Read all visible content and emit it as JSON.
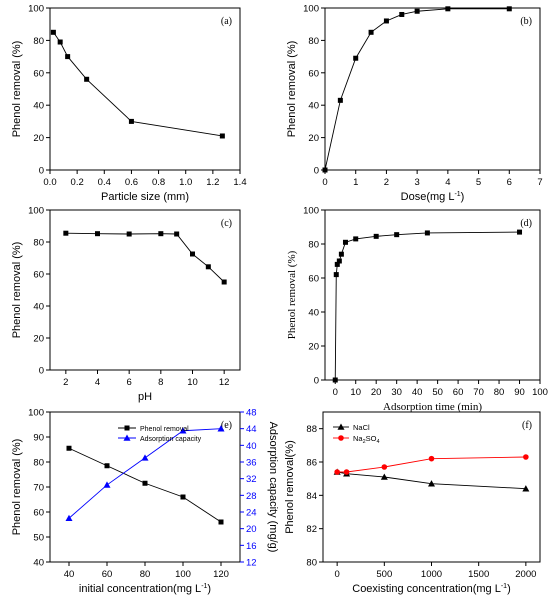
{
  "chart_data": [
    {
      "type": "line",
      "panel": "(a)",
      "xlabel": "Particle size (mm)",
      "ylabel": "Phenol removal (%)",
      "xlim": [
        0,
        1.4
      ],
      "ylim": [
        0,
        100
      ],
      "xticks": [
        "0.0",
        "0.2",
        "0.4",
        "0.6",
        "0.8",
        "1.0",
        "1.2",
        "1.4"
      ],
      "yticks": [
        "0",
        "20",
        "40",
        "60",
        "80",
        "100"
      ],
      "grid": false,
      "series": [
        {
          "color": "#000000",
          "marker": "square",
          "x": [
            0.025,
            0.075,
            0.13,
            0.27,
            0.6,
            1.27
          ],
          "y": [
            85,
            79,
            70,
            56,
            30,
            21
          ]
        }
      ]
    },
    {
      "type": "line",
      "panel": "(b)",
      "xlabel": "Dose(mg L",
      "xlabel_sup": "-1",
      "xlabel_end": ")",
      "ylabel": "Phenol removal (%)",
      "xlim": [
        0,
        7
      ],
      "ylim": [
        0,
        100
      ],
      "xticks": [
        "0",
        "1",
        "2",
        "3",
        "4",
        "5",
        "6",
        "7"
      ],
      "yticks": [
        "0",
        "20",
        "40",
        "60",
        "80",
        "100"
      ],
      "grid": false,
      "series": [
        {
          "color": "#000000",
          "marker": "square",
          "x": [
            0,
            0.5,
            1,
            1.5,
            2,
            2.5,
            3,
            4,
            6
          ],
          "y": [
            0,
            43,
            69,
            85,
            92,
            96,
            98,
            99.5,
            99.5
          ]
        }
      ]
    },
    {
      "type": "line",
      "panel": "(c)",
      "xlabel": "pH",
      "ylabel": "Phenol removal (%)",
      "xlim": [
        1,
        13
      ],
      "ylim": [
        0,
        100
      ],
      "xticks": [
        "2",
        "4",
        "6",
        "8",
        "10",
        "12"
      ],
      "yticks": [
        "0",
        "20",
        "40",
        "60",
        "80",
        "100"
      ],
      "grid": false,
      "series": [
        {
          "color": "#000000",
          "marker": "square",
          "x": [
            2,
            4,
            6,
            8,
            9,
            10,
            11,
            12
          ],
          "y": [
            85.5,
            85.2,
            85,
            85.2,
            85,
            72.5,
            64.5,
            55
          ]
        }
      ]
    },
    {
      "type": "line",
      "panel": "(d)",
      "xlabel": "Adsorption time (min)",
      "ylabel": "Phenol removal (%)",
      "xlim": [
        -5,
        100
      ],
      "ylim": [
        0,
        100
      ],
      "xticks": [
        "0",
        "10",
        "20",
        "30",
        "40",
        "50",
        "60",
        "70",
        "80",
        "90",
        "100"
      ],
      "yticks": [
        "0",
        "20",
        "40",
        "60",
        "80",
        "100"
      ],
      "grid": false,
      "series": [
        {
          "color": "#000000",
          "marker": "square",
          "x": [
            0,
            0.5,
            1,
            2,
            3,
            5,
            10,
            20,
            30,
            45,
            90
          ],
          "y": [
            0,
            62,
            68,
            70,
            74,
            81,
            83,
            84.5,
            85.5,
            86.5,
            87
          ]
        }
      ]
    },
    {
      "type": "line",
      "panel": "(e)",
      "xlabel": "initial concentration(mg L",
      "xlabel_sup": "-1",
      "xlabel_end": ")",
      "ylabel": "Phenol removal (%)",
      "y2label": "Adsorption capacity (mg/g)",
      "xlim": [
        30,
        130
      ],
      "ylim": [
        40,
        100
      ],
      "y2lim": [
        12,
        48
      ],
      "xticks": [
        "40",
        "60",
        "80",
        "100",
        "120"
      ],
      "yticks": [
        "40",
        "50",
        "60",
        "70",
        "80",
        "90",
        "100"
      ],
      "y2ticks": [
        "12",
        "16",
        "20",
        "24",
        "28",
        "32",
        "36",
        "40",
        "44",
        "48"
      ],
      "legend_position": "top-center",
      "grid": false,
      "series": [
        {
          "name": "Phenol removal",
          "color": "#000000",
          "marker": "square",
          "axis": "left",
          "x": [
            40,
            60,
            80,
            100,
            120
          ],
          "y": [
            85.5,
            78.5,
            71.5,
            66,
            56
          ]
        },
        {
          "name": "Adsorption capacity",
          "color": "#0000ff",
          "marker": "triangle",
          "axis": "right",
          "x": [
            40,
            60,
            80,
            100,
            120
          ],
          "y": [
            22.5,
            30.5,
            37,
            43.5,
            44
          ]
        }
      ]
    },
    {
      "type": "line",
      "panel": "(f)",
      "xlabel": "Coexisting concentration(mg L",
      "xlabel_sup": "-1",
      "xlabel_end": ")",
      "ylabel": "Phenol removal(%)",
      "xlim": [
        -150,
        2150
      ],
      "ylim": [
        80,
        89
      ],
      "xticks": [
        "0",
        "500",
        "1000",
        "1500",
        "2000"
      ],
      "yticks": [
        "80",
        "82",
        "84",
        "86",
        "88"
      ],
      "legend_position": "top-left",
      "grid": false,
      "series": [
        {
          "name": "NaCl",
          "color": "#000000",
          "marker": "triangle",
          "x": [
            0,
            100,
            500,
            1000,
            2000
          ],
          "y": [
            85.4,
            85.3,
            85.1,
            84.7,
            84.4
          ]
        },
        {
          "name": "Na2SO4",
          "name_parts": [
            "Na",
            "2",
            "SO",
            "4"
          ],
          "color": "#ff0000",
          "marker": "circle",
          "x": [
            0,
            100,
            500,
            1000,
            2000
          ],
          "y": [
            85.4,
            85.4,
            85.7,
            86.2,
            86.3
          ]
        }
      ]
    }
  ]
}
